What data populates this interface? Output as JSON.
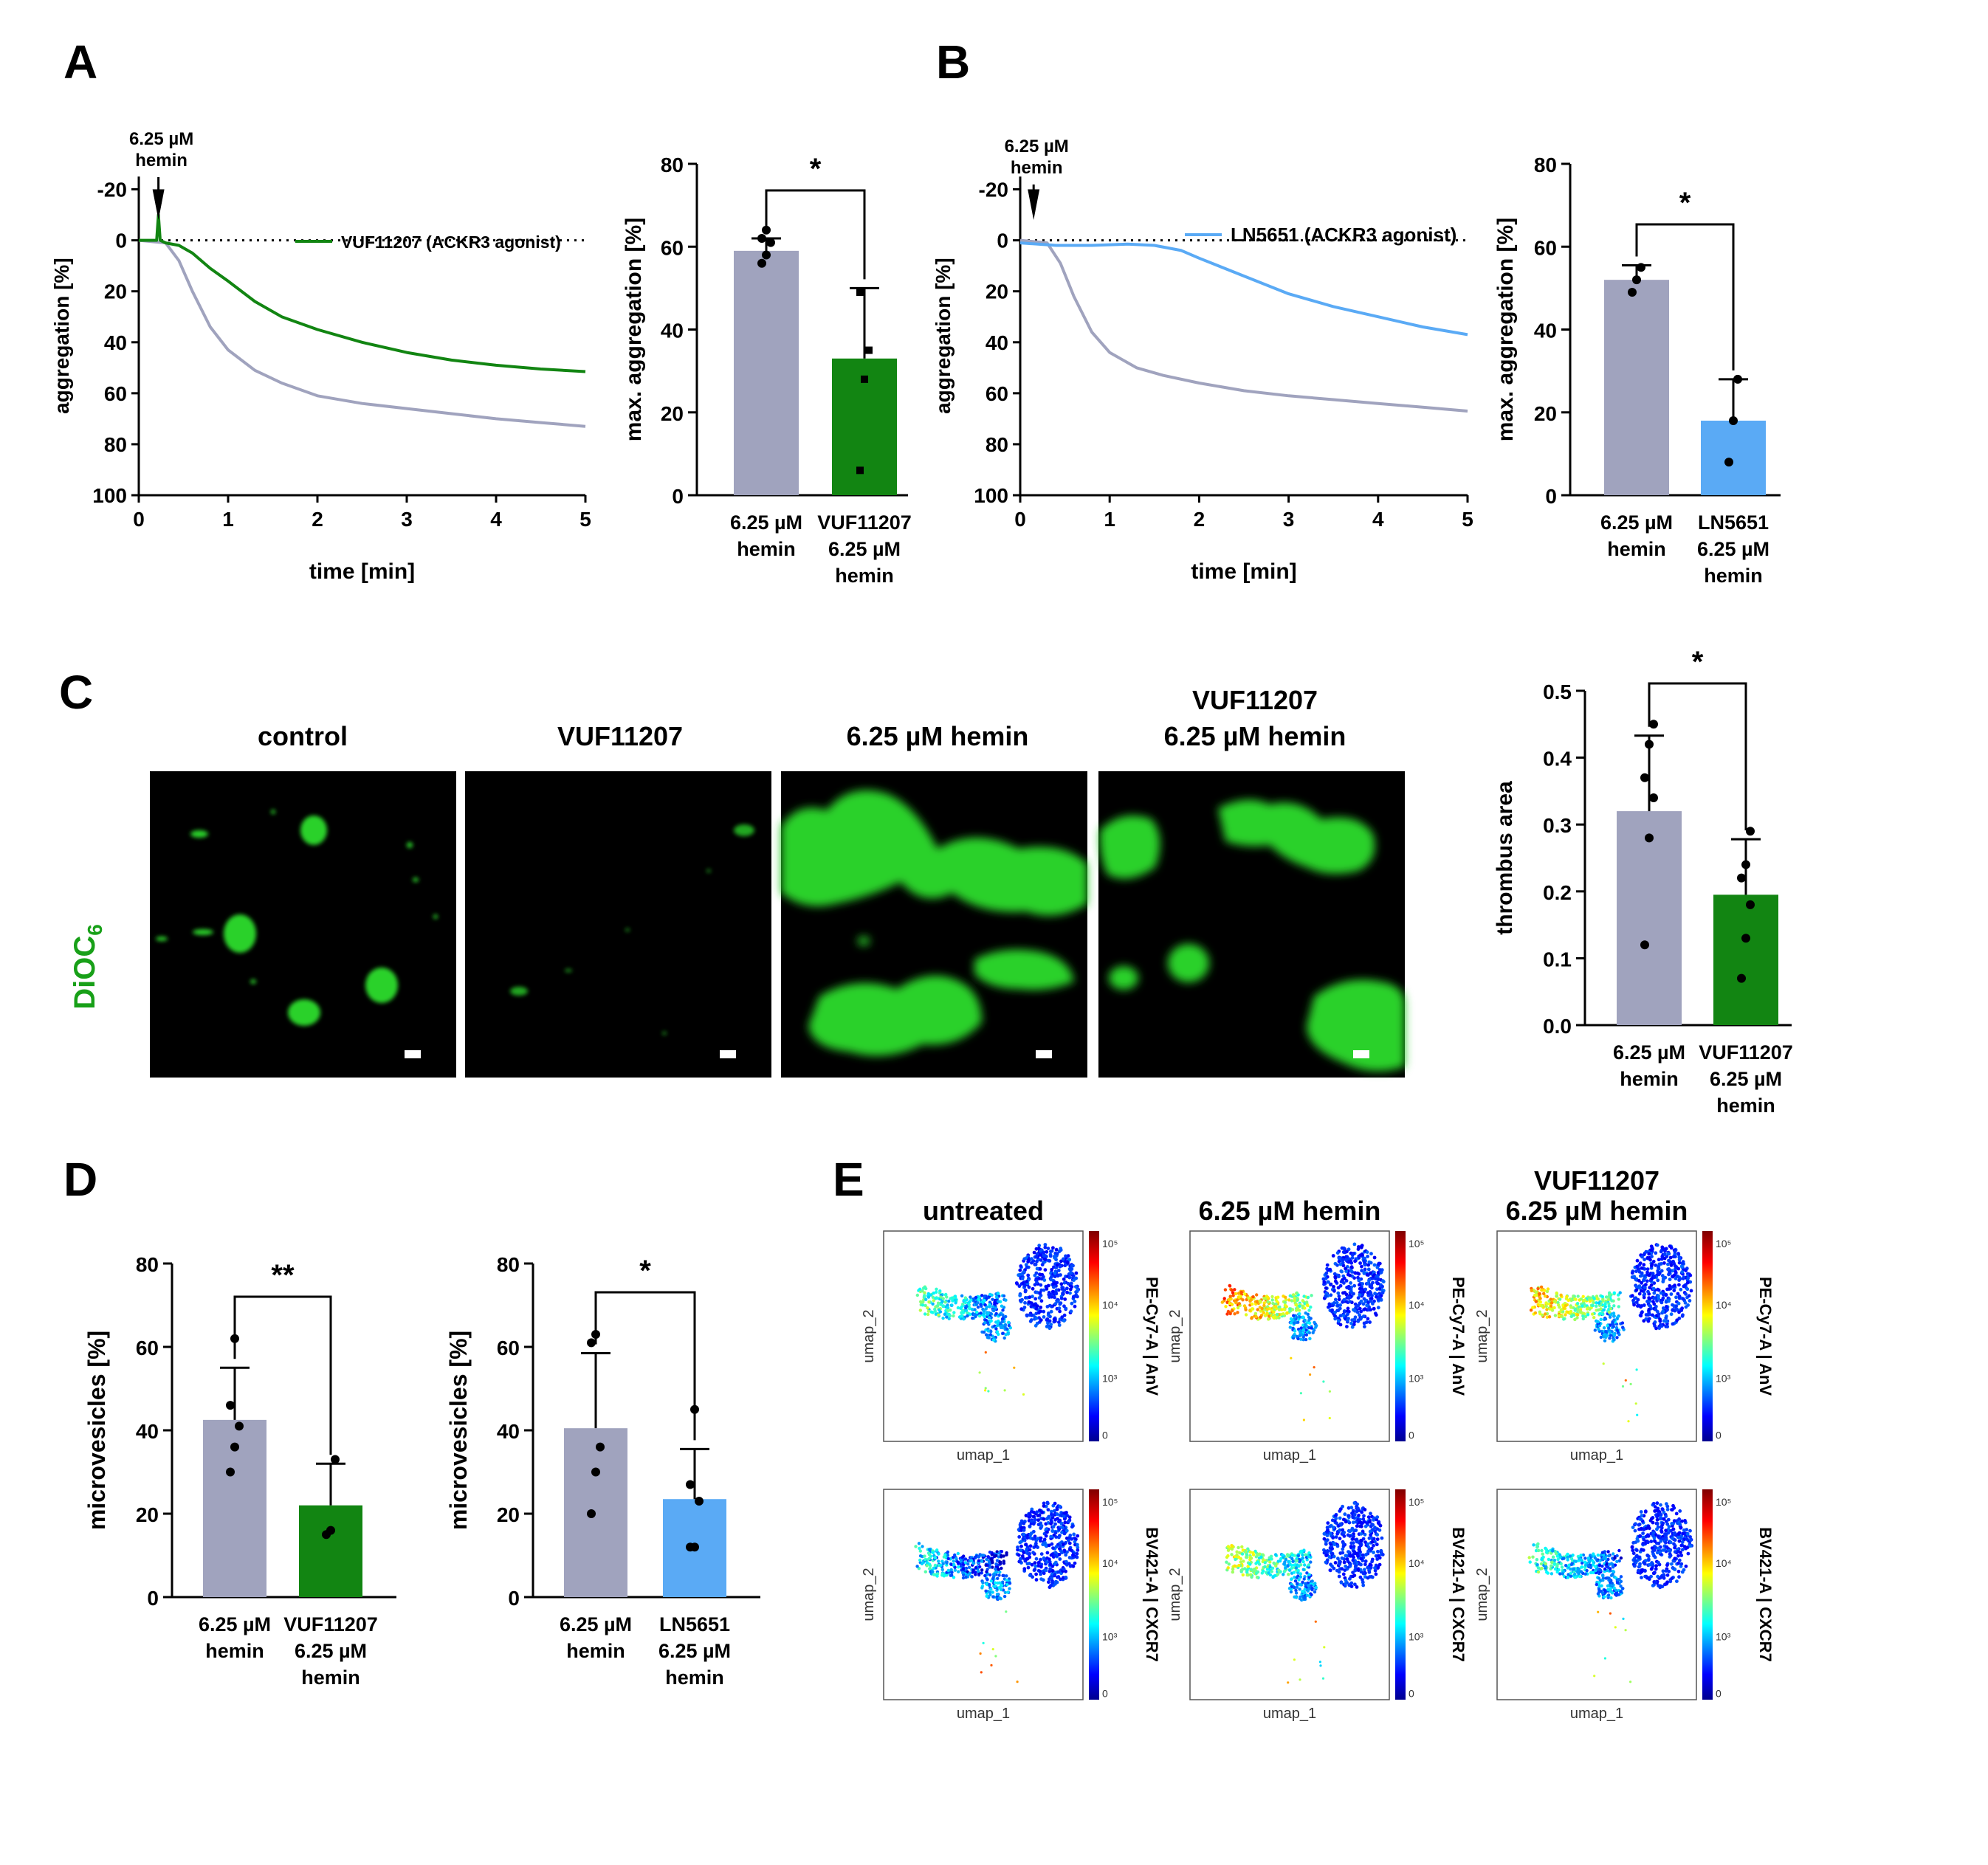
{
  "panels": {
    "A": "A",
    "B": "B",
    "C": "C",
    "D": "D",
    "E": "E"
  },
  "colors": {
    "control_grey": "#a0a3be",
    "vuf_green": "#128512",
    "ln_blue": "#5aaaf5",
    "micro_green": "#2bd12b",
    "black": "#000000"
  },
  "chart_data": [
    {
      "id": "A_trace",
      "type": "line",
      "xlabel": "time [min]",
      "ylabel": "aggregation [%]",
      "xlim": [
        0,
        5
      ],
      "ylim": [
        -30,
        100
      ],
      "y_inverted": true,
      "x_ticks": [
        "0",
        "1",
        "2",
        "3",
        "4",
        "5"
      ],
      "y_ticks": [
        "-20",
        "0",
        "20",
        "40",
        "60",
        "80",
        "100"
      ],
      "annotation": "6.25 µM hemin",
      "annotation_x": 0.22,
      "legend_label": "VUF11207 (ACKR3 agonist)",
      "series": [
        {
          "color": "#a0a3be",
          "x": [
            0,
            0.3,
            0.45,
            0.6,
            0.8,
            1.0,
            1.3,
            1.6,
            2.0,
            2.5,
            3.0,
            3.5,
            4.0,
            4.5,
            5.0
          ],
          "y": [
            0,
            1,
            8,
            20,
            34,
            43,
            51,
            56,
            61,
            64,
            66,
            68,
            70,
            71.5,
            73
          ]
        },
        {
          "name": "VUF11207 (ACKR3 agonist)",
          "color": "#128512",
          "x": [
            0,
            0.2,
            0.22,
            0.24,
            0.3,
            0.45,
            0.6,
            0.8,
            1.0,
            1.3,
            1.6,
            2.0,
            2.5,
            3.0,
            3.5,
            4.0,
            4.5,
            5.0
          ],
          "y": [
            0,
            0,
            -10,
            0,
            1,
            2,
            5,
            11,
            16,
            24,
            30,
            35,
            40,
            44,
            47,
            49,
            50.5,
            51.5
          ]
        }
      ]
    },
    {
      "id": "A_bar",
      "type": "bar",
      "ylabel": "max. aggregation [%]",
      "ylim": [
        0,
        80
      ],
      "y_ticks": [
        "0",
        "20",
        "40",
        "60",
        "80"
      ],
      "categories": [
        [
          "6.25 µM",
          "hemin"
        ],
        [
          "VUF11207",
          "6.25 µM",
          "hemin"
        ]
      ],
      "values": [
        59,
        33
      ],
      "errors": [
        3,
        17
      ],
      "colors": [
        "#a0a3be",
        "#128512"
      ],
      "points": [
        [
          56,
          58,
          61,
          62,
          64
        ],
        [
          6,
          28,
          35,
          49
        ]
      ],
      "point_marks": [
        "circle",
        "square"
      ],
      "significance": "*"
    },
    {
      "id": "B_trace",
      "type": "line",
      "xlabel": "time [min]",
      "ylabel": "aggregation [%]",
      "xlim": [
        0,
        5
      ],
      "ylim": [
        -30,
        100
      ],
      "y_inverted": true,
      "x_ticks": [
        "0",
        "1",
        "2",
        "3",
        "4",
        "5"
      ],
      "y_ticks": [
        "-20",
        "0",
        "20",
        "40",
        "60",
        "80",
        "100"
      ],
      "annotation": "6.25 µM hemin",
      "annotation_x": 0.15,
      "legend_label": "LN5651 (ACKR3 agonist)",
      "series": [
        {
          "color": "#a0a3be",
          "x": [
            0,
            0.3,
            0.45,
            0.6,
            0.8,
            1.0,
            1.3,
            1.6,
            2.0,
            2.5,
            3.0,
            3.5,
            4.0,
            4.5,
            5.0
          ],
          "y": [
            0,
            1,
            9,
            22,
            36,
            44,
            50,
            53,
            56,
            59,
            61,
            62.5,
            64,
            65.5,
            67
          ]
        },
        {
          "name": "LN5651 (ACKR3 agonist)",
          "color": "#5aaaf5",
          "x": [
            0,
            0.4,
            0.8,
            1.2,
            1.5,
            1.8,
            2.0,
            2.5,
            3.0,
            3.5,
            4.0,
            4.5,
            5.0
          ],
          "y": [
            1,
            2,
            2,
            1.5,
            2,
            4,
            7,
            14,
            21,
            26,
            30,
            34,
            37
          ]
        }
      ]
    },
    {
      "id": "B_bar",
      "type": "bar",
      "ylabel": "max. aggregation [%]",
      "ylim": [
        0,
        80
      ],
      "y_ticks": [
        "0",
        "20",
        "40",
        "60",
        "80"
      ],
      "categories": [
        [
          "6.25 µM",
          "hemin"
        ],
        [
          "LN5651",
          "6.25 µM",
          "hemin"
        ]
      ],
      "values": [
        52,
        18
      ],
      "errors": [
        3.5,
        10
      ],
      "colors": [
        "#a0a3be",
        "#5aaaf5"
      ],
      "points": [
        [
          49,
          52,
          55
        ],
        [
          8,
          18,
          28
        ]
      ],
      "point_marks": [
        "circle",
        "circle"
      ],
      "significance": "*"
    },
    {
      "id": "C_bar",
      "type": "bar",
      "ylabel": "thrombus area",
      "ylim": [
        0,
        0.5
      ],
      "y_ticks": [
        "0.0",
        "0.1",
        "0.2",
        "0.3",
        "0.4",
        "0.5"
      ],
      "categories": [
        [
          "6.25 µM",
          "hemin"
        ],
        [
          "VUF11207",
          "6.25 µM",
          "hemin"
        ]
      ],
      "values": [
        0.32,
        0.195
      ],
      "errors": [
        0.113,
        0.083
      ],
      "colors": [
        "#a0a3be",
        "#128512"
      ],
      "points": [
        [
          0.12,
          0.28,
          0.34,
          0.37,
          0.42,
          0.45
        ],
        [
          0.07,
          0.13,
          0.18,
          0.22,
          0.24,
          0.29
        ]
      ],
      "point_marks": [
        "circle",
        "circle"
      ],
      "significance": "*"
    },
    {
      "id": "D_bar1",
      "type": "bar",
      "ylabel": "microvesicles [%]",
      "ylim": [
        0,
        80
      ],
      "y_ticks": [
        "0",
        "20",
        "40",
        "60",
        "80"
      ],
      "categories": [
        [
          "6.25 µM",
          "hemin"
        ],
        [
          "VUF11207",
          "6.25 µM",
          "hemin"
        ]
      ],
      "values": [
        42.5,
        22
      ],
      "errors": [
        12.5,
        10
      ],
      "colors": [
        "#a0a3be",
        "#128512"
      ],
      "points": [
        [
          30,
          36,
          41,
          46,
          62
        ],
        [
          15,
          16,
          33
        ]
      ],
      "point_marks": [
        "circle",
        "circle"
      ],
      "significance": "**"
    },
    {
      "id": "D_bar2",
      "type": "bar",
      "ylabel": "microvesicles [%]",
      "ylim": [
        0,
        80
      ],
      "y_ticks": [
        "0",
        "20",
        "40",
        "60",
        "80"
      ],
      "categories": [
        [
          "6.25 µM",
          "hemin"
        ],
        [
          "LN5651",
          "6.25 µM",
          "hemin"
        ]
      ],
      "values": [
        40.5,
        23.5
      ],
      "errors": [
        18,
        12
      ],
      "colors": [
        "#a0a3be",
        "#5aaaf5"
      ],
      "points": [
        [
          20,
          30,
          36,
          61,
          63
        ],
        [
          12,
          12,
          23,
          27,
          45
        ]
      ],
      "point_marks": [
        "circle",
        "circle"
      ],
      "significance": "*"
    }
  ],
  "panelC": {
    "columns": [
      "control",
      "VUF11207",
      "6.25 µM hemin",
      [
        "VUF11207",
        "6.25 µM hemin"
      ]
    ],
    "row_label": "DiOC",
    "row_label_sub": "6"
  },
  "panelE": {
    "columns": [
      "untreated",
      "6.25 µM hemin",
      [
        "VUF11207",
        "6.25 µM hemin"
      ]
    ],
    "row_labels": [
      "PE-Cy7-A | AnV",
      "BV421-A | CXCR7"
    ],
    "xlabel": "umap_1",
    "ylabel": "umap_2",
    "colorbar_ticks_top": [
      "10⁵",
      "10⁴",
      "10³",
      "0"
    ],
    "colorbar_ticks_bottom": [
      "10⁵",
      "10⁴",
      "10³",
      "0"
    ]
  }
}
